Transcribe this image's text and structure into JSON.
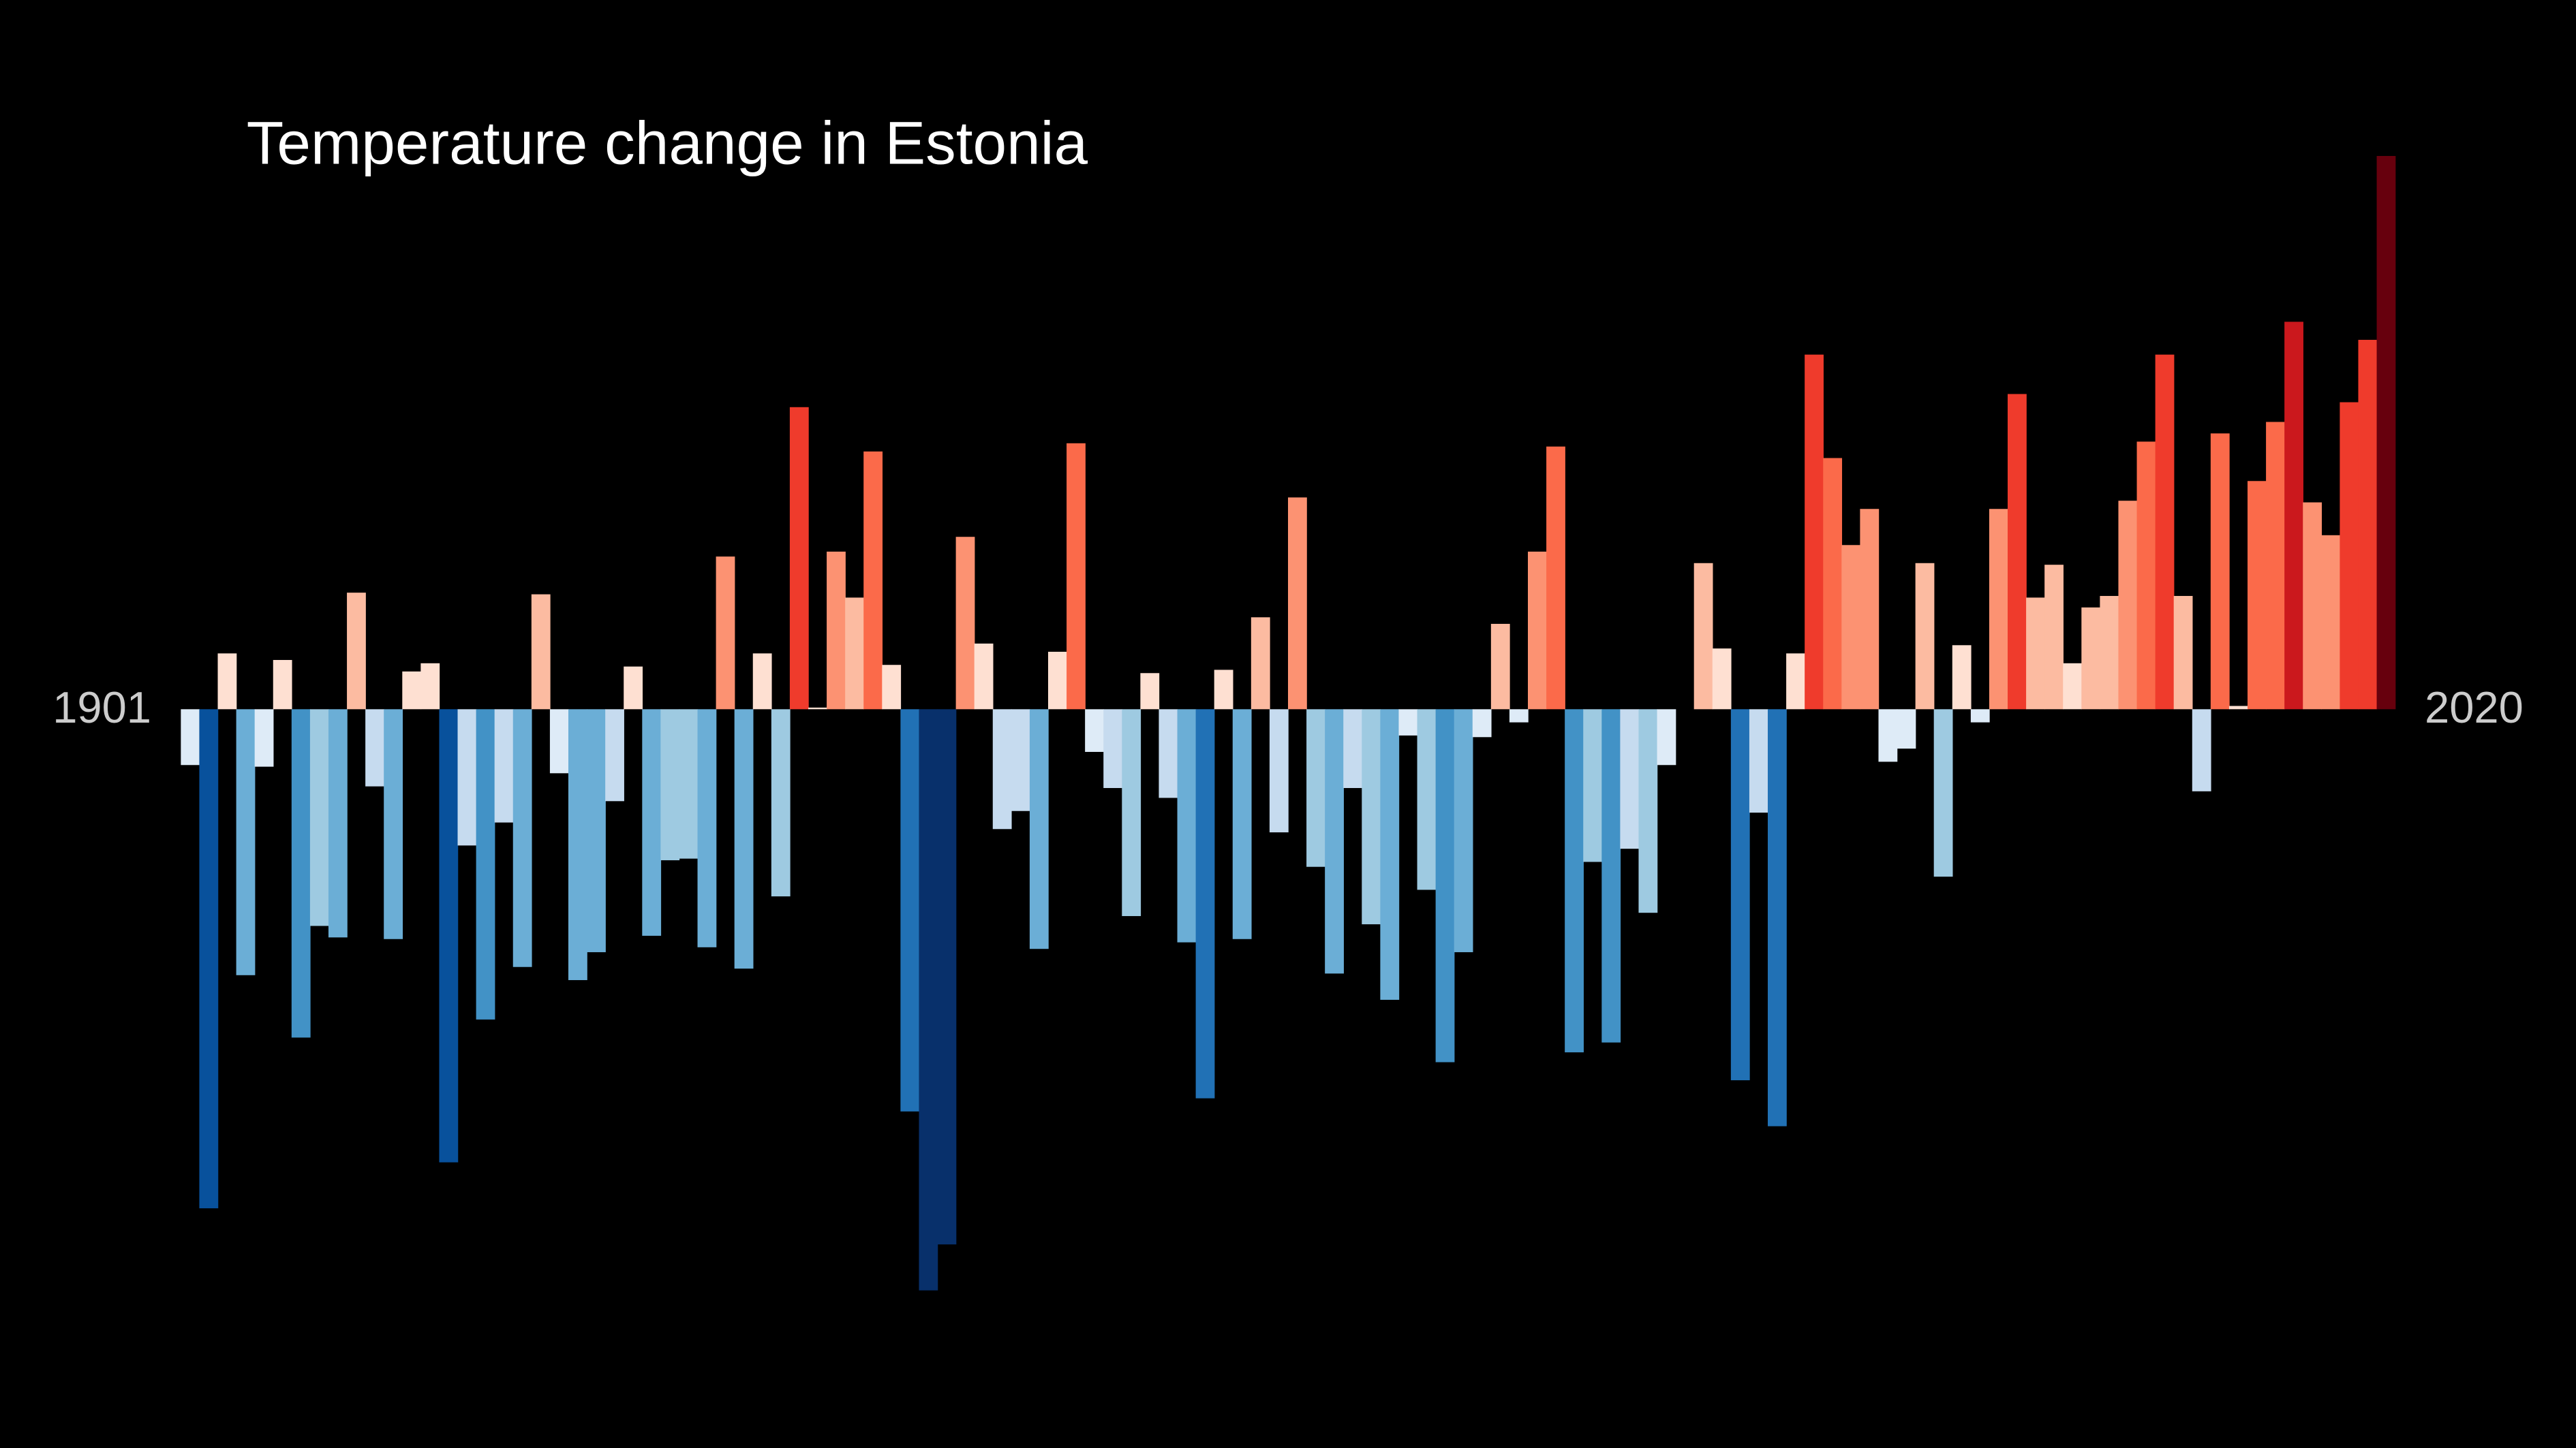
{
  "chart_data": {
    "type": "bar",
    "title": "Temperature change in Estonia",
    "categories": [
      1901,
      null,
      null,
      null,
      null,
      null,
      null,
      null,
      null,
      null,
      null,
      null,
      null,
      null,
      null,
      null,
      null,
      null,
      null,
      null,
      null,
      null,
      null,
      null,
      null,
      null,
      null,
      null,
      null,
      null,
      null,
      null,
      null,
      null,
      null,
      null,
      null,
      null,
      null,
      null,
      null,
      null,
      null,
      null,
      null,
      null,
      null,
      null,
      null,
      null,
      null,
      null,
      null,
      null,
      null,
      null,
      null,
      null,
      null,
      null,
      null,
      null,
      null,
      null,
      null,
      null,
      null,
      null,
      null,
      null,
      null,
      null,
      null,
      null,
      null,
      null,
      null,
      null,
      null,
      null,
      null,
      null,
      null,
      null,
      null,
      null,
      null,
      null,
      null,
      null,
      null,
      null,
      null,
      null,
      null,
      null,
      null,
      null,
      null,
      null,
      null,
      null,
      null,
      null,
      null,
      null,
      null,
      null,
      null,
      null,
      null,
      null,
      null,
      null,
      null,
      null,
      null,
      null,
      null,
      2020
    ],
    "values": [
      -0.34,
      -3.04,
      0.34,
      -1.62,
      -0.35,
      0.3,
      -2.0,
      -1.32,
      -1.39,
      0.71,
      -0.47,
      -1.4,
      0.23,
      0.28,
      -2.76,
      -0.83,
      -1.89,
      -0.69,
      -1.57,
      0.7,
      -0.39,
      -1.65,
      -1.48,
      -0.56,
      0.26,
      -1.38,
      -0.92,
      -0.91,
      -1.45,
      0.93,
      -1.58,
      0.34,
      -1.14,
      1.84,
      0.01,
      0.96,
      0.68,
      1.57,
      0.27,
      -2.45,
      -3.54,
      -3.26,
      1.05,
      0.4,
      -0.73,
      -0.62,
      -1.46,
      0.35,
      1.62,
      -0.26,
      -0.48,
      -1.26,
      0.22,
      -0.54,
      -1.42,
      -2.37,
      0.24,
      -1.4,
      0.56,
      -0.75,
      1.29,
      -0.96,
      -1.61,
      -0.48,
      -1.31,
      -1.77,
      -0.16,
      -1.1,
      -2.15,
      -1.48,
      -0.17,
      0.52,
      -0.08,
      0.96,
      1.6,
      -2.09,
      -0.93,
      -2.03,
      -0.85,
      -1.24,
      -0.34,
      0.0,
      0.89,
      0.37,
      -2.26,
      -0.63,
      -2.54,
      0.34,
      2.16,
      1.53,
      1.0,
      1.22,
      -0.32,
      -0.24,
      0.89,
      -1.02,
      0.39,
      -0.08,
      1.22,
      1.92,
      0.68,
      0.88,
      0.28,
      0.62,
      0.69,
      1.27,
      1.63,
      2.16,
      0.69,
      -0.5,
      1.68,
      0.02,
      1.39,
      1.75,
      2.36,
      1.26,
      1.06,
      1.87,
      2.25,
      3.37
    ],
    "ylim": [
      -3.6,
      3.5
    ],
    "colormap": [
      "#08306b",
      "#08519c",
      "#2171b5",
      "#4292c6",
      "#6baed6",
      "#9ecae1",
      "#c6dbef",
      "#deebf7",
      "#fee0d2",
      "#fcbba1",
      "#fc9272",
      "#fb6a4a",
      "#ef3b2c",
      "#cb181d",
      "#a50f15",
      "#67000d"
    ]
  }
}
